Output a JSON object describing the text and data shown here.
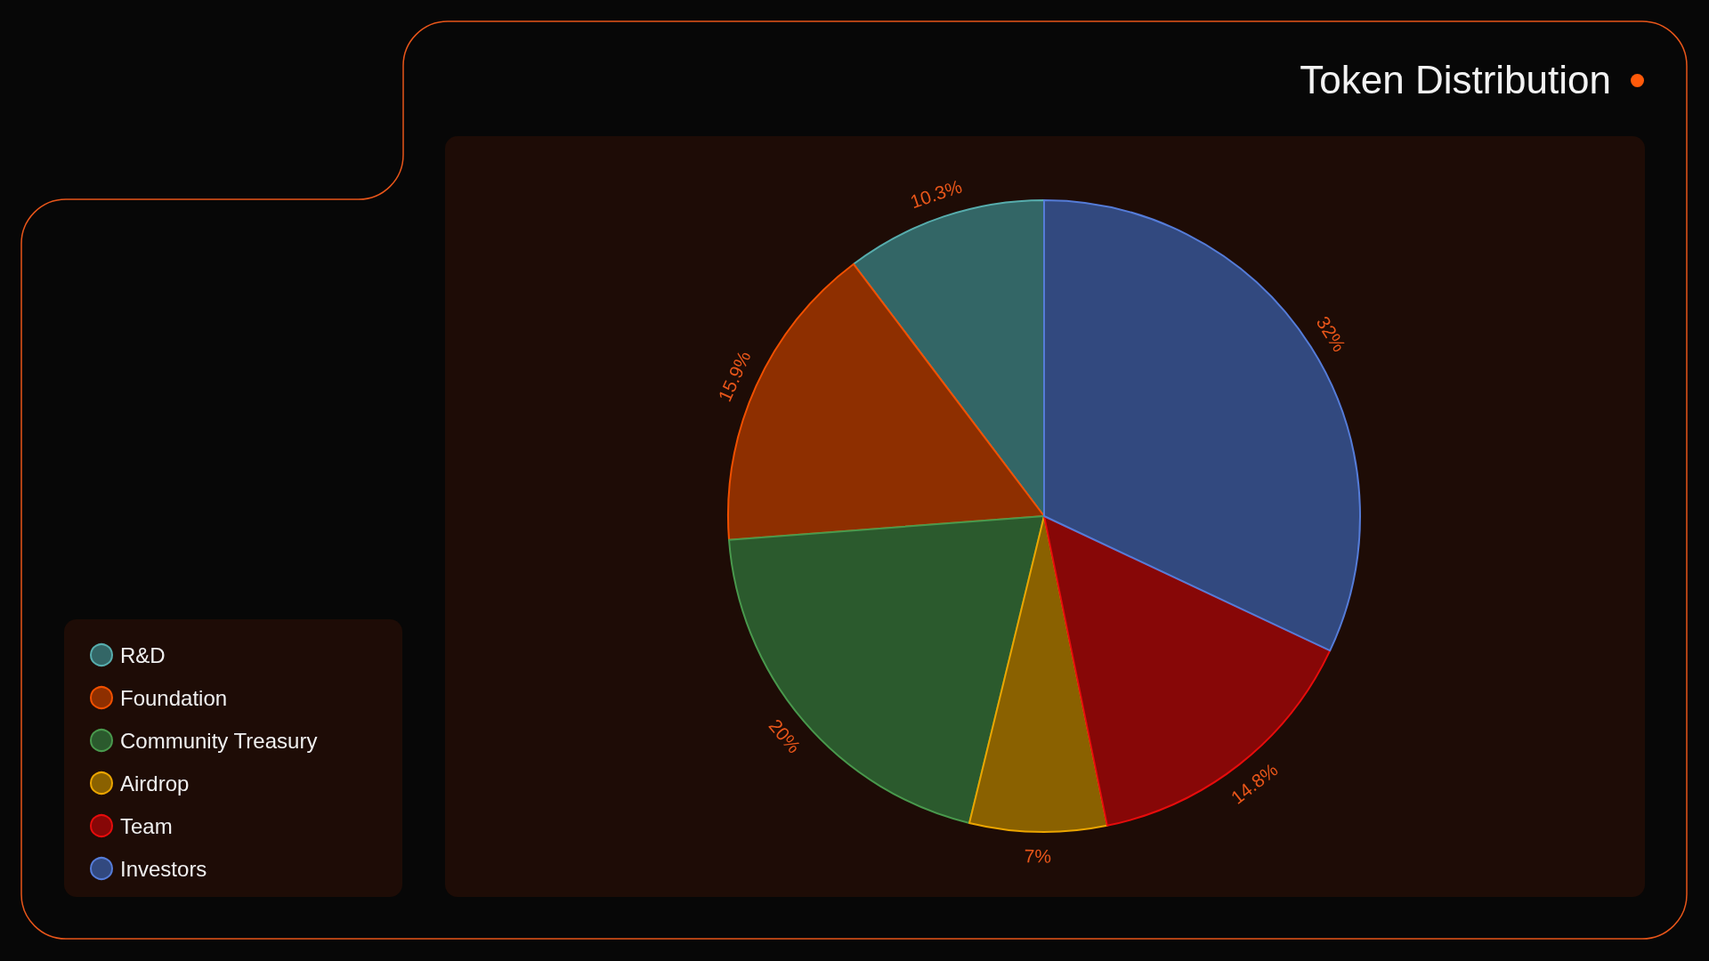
{
  "chart_data": {
    "type": "pie",
    "title": "Token Distribution",
    "categories": [
      "R&D",
      "Foundation",
      "Community Treasury",
      "Airdrop",
      "Team",
      "Investors"
    ],
    "values": [
      10.3,
      15.9,
      20,
      7,
      14.8,
      32
    ],
    "colors": [
      "#336666",
      "#8e2f00",
      "#2b5a2d",
      "#8a6100",
      "#870707",
      "#32497f"
    ],
    "value_labels": [
      "10.3%",
      "15.9%",
      "20%",
      "7%",
      "14.8%",
      "32%"
    ],
    "legend": "bottom left"
  }
}
